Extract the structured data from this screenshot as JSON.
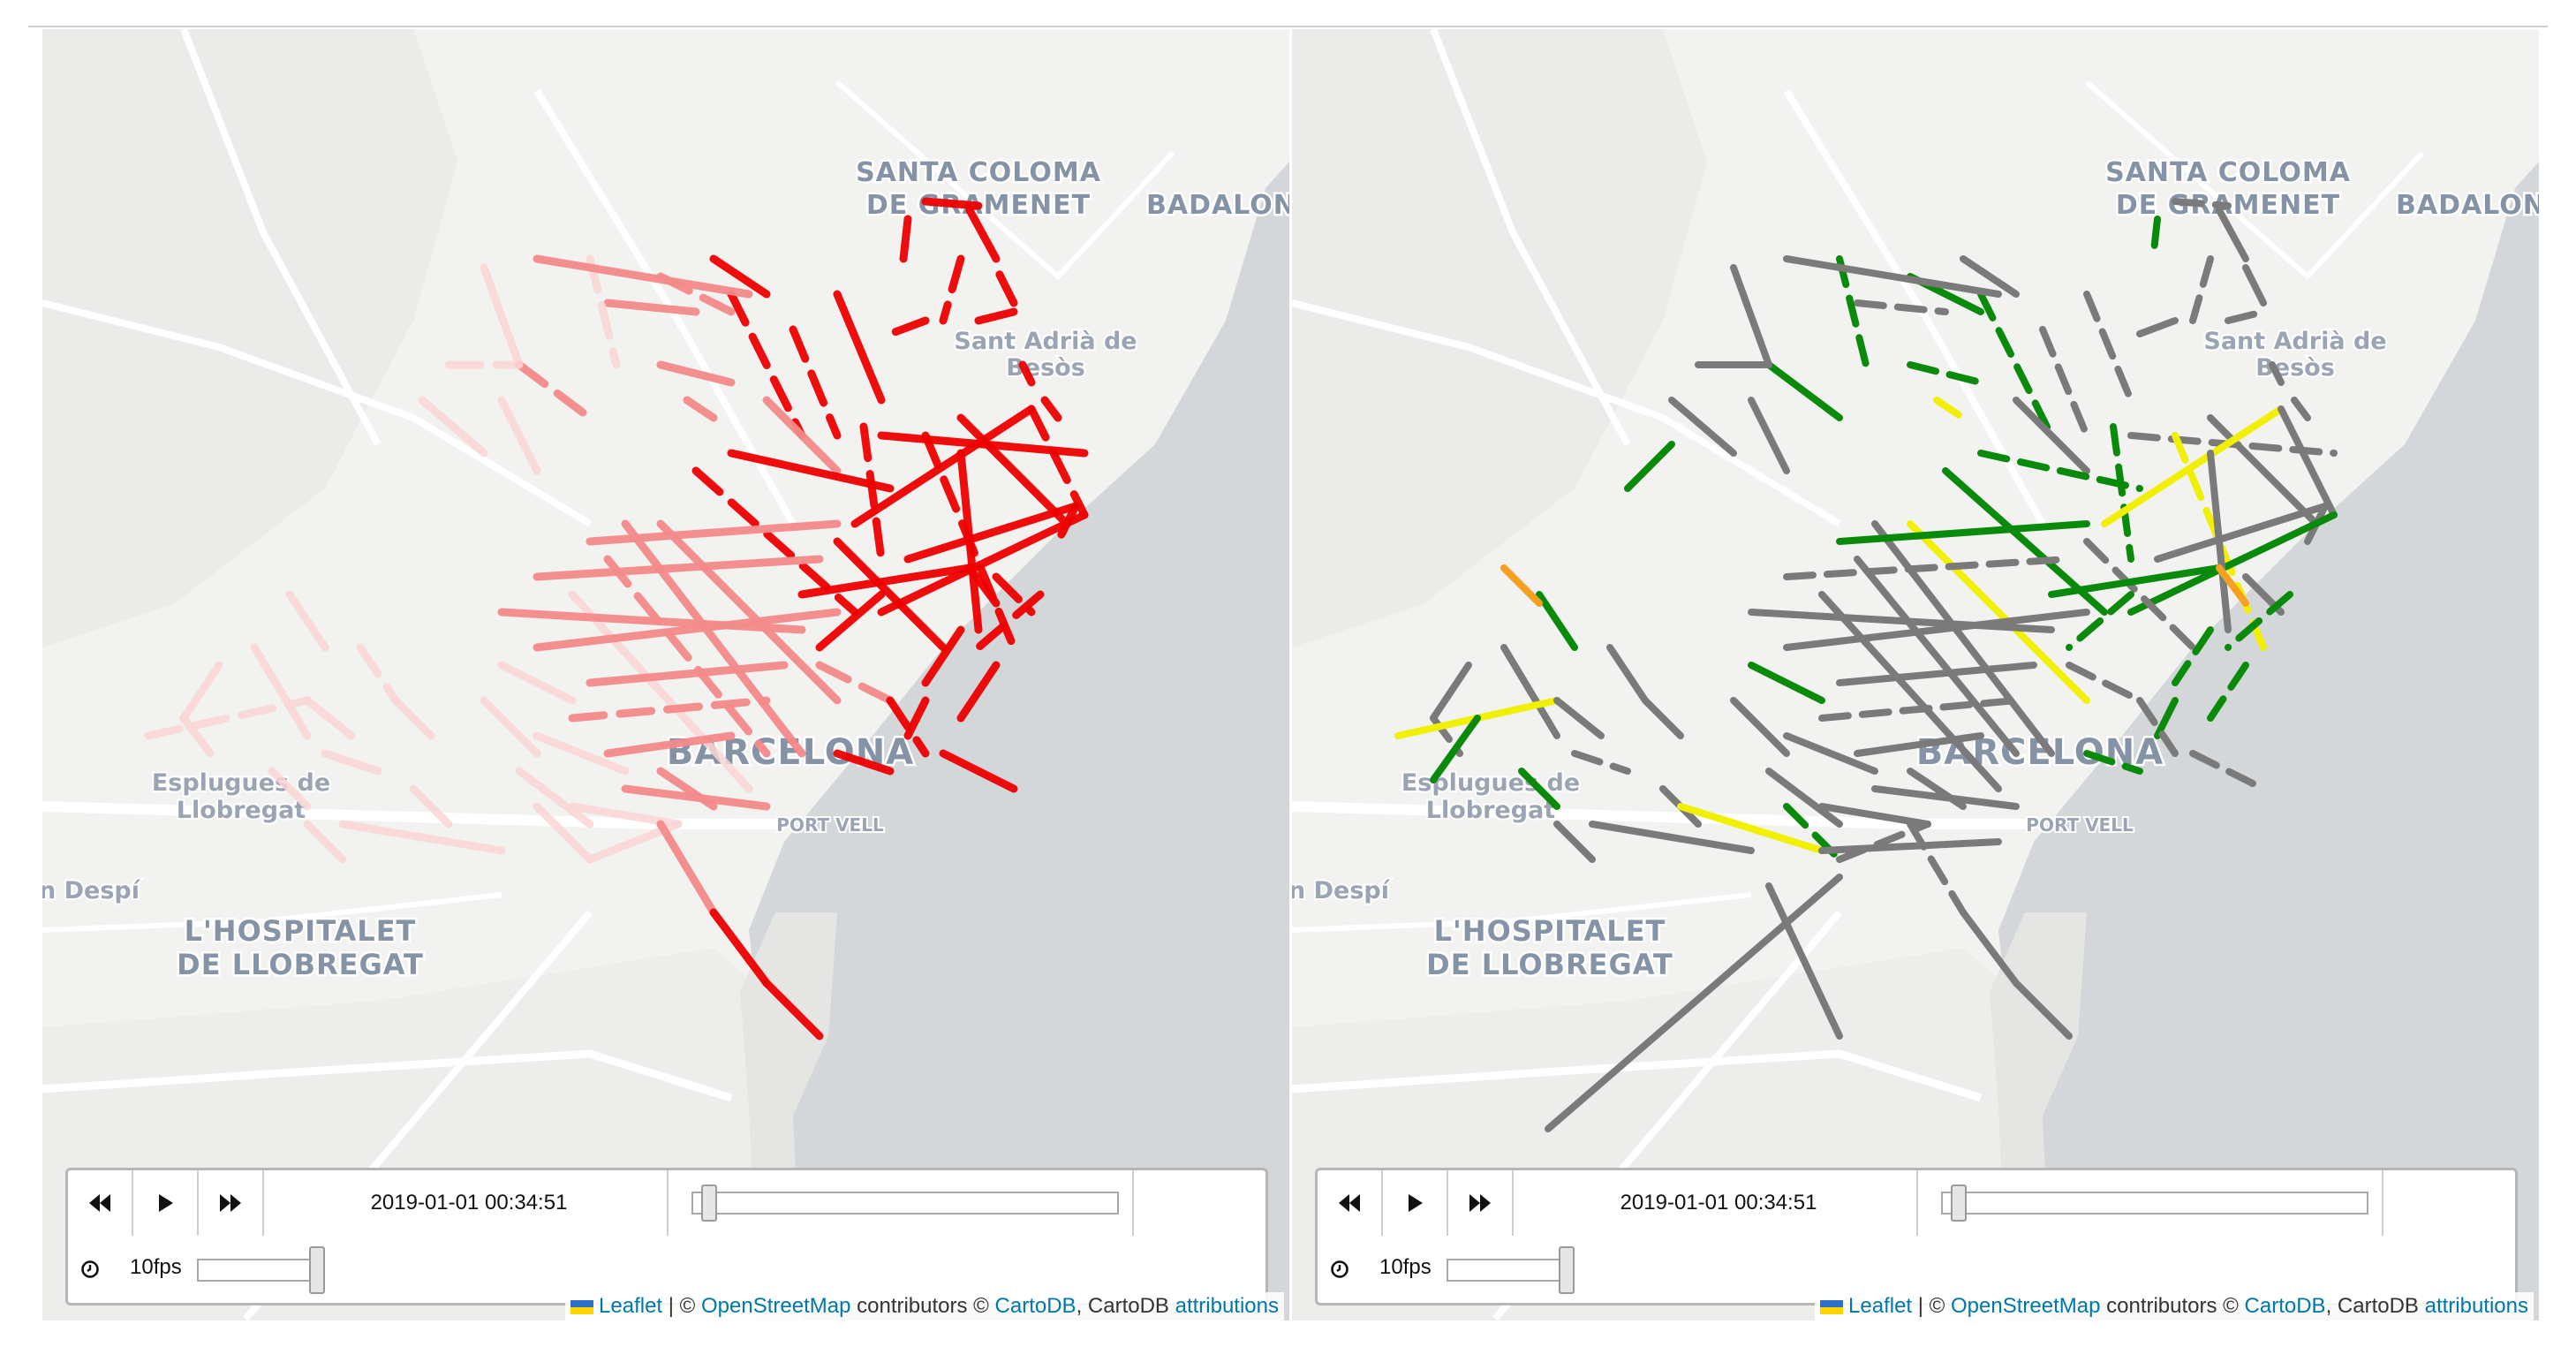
{
  "playback": {
    "timestamp": "2019-01-01 00:34:51",
    "fps_label": "10fps",
    "time_position": 0.03,
    "fps_level": 1.0
  },
  "attribution": {
    "leaflet": "Leaflet",
    "sep": " | © ",
    "osm": "OpenStreetMap",
    "contrib": " contributors © ",
    "carto": "CartoDB",
    "carto_plain": ", CartoDB ",
    "attributions": "attributions"
  },
  "places": {
    "santa_coloma_1": "SANTA COLOMA",
    "santa_coloma_2": "DE GRAMENET",
    "badalona": "BADALON",
    "sant_adria_1": "Sant Adrià de",
    "sant_adria_2": "Besòs",
    "esplugues_1": "Esplugues de",
    "esplugues_2": "Llobregat",
    "barcelona": "BARCELONA",
    "port_vell": "PORT VELL",
    "despi": "n Despí",
    "hospitalet_1": "L'HOSPITALET",
    "hospitalet_2": "DE LLOBREGAT"
  },
  "icons": {
    "rewind": "rewind-icon",
    "play": "play-icon",
    "forward": "fast-forward-icon",
    "clock": "clock-icon"
  },
  "colors": {
    "left_gradient_low": "#fbd6d6",
    "left_gradient_mid": "#f58a8a",
    "left_gradient_high": "#ee0000",
    "right_gray": "#7a7a7a",
    "right_green": "#0a8a0a",
    "right_yellow": "#f0f000",
    "right_orange": "#f5a020",
    "sea": "#d4d7da",
    "land": "#f2f2f0",
    "link": "#0078a8"
  }
}
